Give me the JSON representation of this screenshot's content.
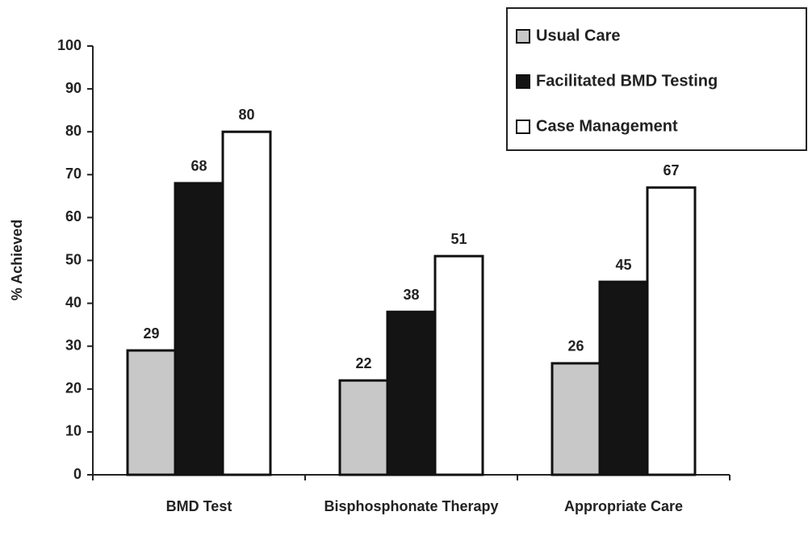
{
  "chart_data": {
    "type": "bar",
    "y_label": "% Achieved",
    "categories": [
      "BMD Test",
      "Bisphosphonate Therapy",
      "Appropriate Care"
    ],
    "series": [
      {
        "name": "Usual Care",
        "color": "#c8c8c8",
        "values": [
          29,
          22,
          26
        ]
      },
      {
        "name": "Facilitated BMD Testing",
        "color": "#141414",
        "values": [
          68,
          38,
          45
        ]
      },
      {
        "name": "Case Management",
        "color": "#ffffff",
        "values": [
          80,
          51,
          67
        ]
      }
    ],
    "ylim": [
      0,
      100
    ],
    "yticks": [
      0,
      10,
      20,
      30,
      40,
      50,
      60,
      70,
      80,
      90,
      100
    ],
    "legend": "upper right"
  }
}
